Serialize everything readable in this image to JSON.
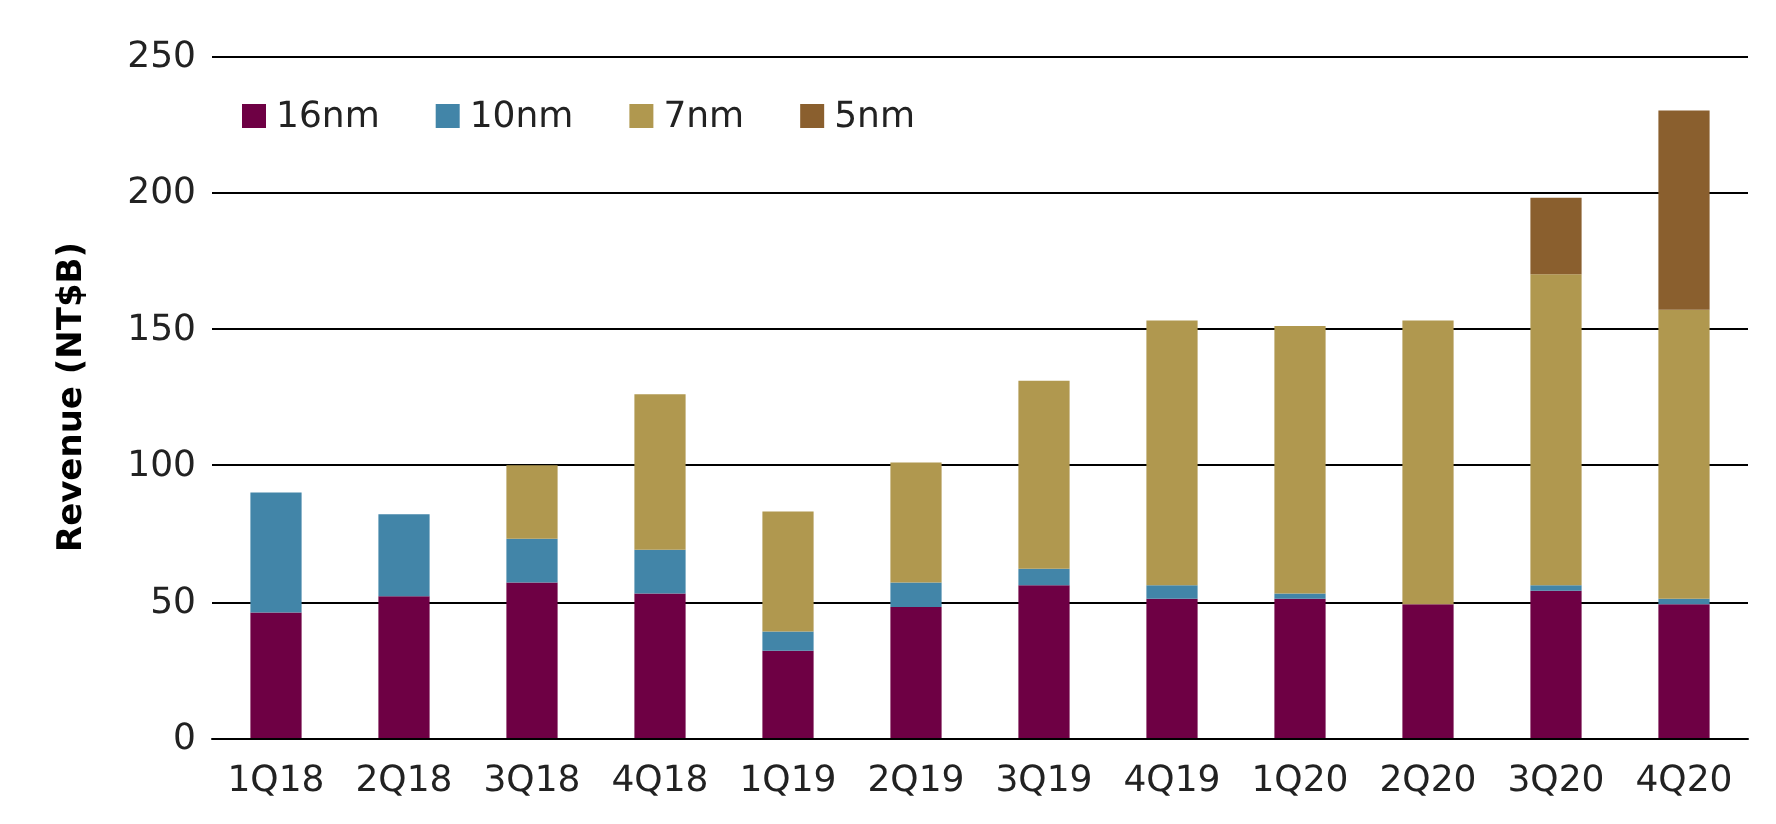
{
  "chart_data": {
    "type": "bar",
    "stacked": true,
    "ylabel": "Revenue (NT$B)",
    "categories": [
      "1Q18",
      "2Q18",
      "3Q18",
      "4Q18",
      "1Q19",
      "2Q19",
      "3Q19",
      "4Q19",
      "1Q20",
      "2Q20",
      "3Q20",
      "4Q20"
    ],
    "series": [
      {
        "name": "16nm",
        "color": "#6e0044",
        "values": [
          46,
          52,
          57,
          53,
          32,
          48,
          56,
          51,
          51,
          49,
          54,
          49
        ]
      },
      {
        "name": "10nm",
        "color": "#4285a8",
        "values": [
          44,
          30,
          16,
          16,
          7,
          9,
          6,
          5,
          2,
          0,
          2,
          2
        ]
      },
      {
        "name": "7nm",
        "color": "#b0984f",
        "values": [
          0,
          0,
          27,
          57,
          44,
          44,
          69,
          97,
          98,
          104,
          114,
          106
        ]
      },
      {
        "name": "5nm",
        "color": "#8a5f2e",
        "values": [
          0,
          0,
          0,
          0,
          0,
          0,
          0,
          0,
          0,
          0,
          28,
          73
        ]
      }
    ],
    "ylim": [
      0,
      250
    ],
    "yticks": [
      0,
      50,
      100,
      150,
      200,
      250
    ],
    "grid": "y",
    "legend": "top left"
  }
}
